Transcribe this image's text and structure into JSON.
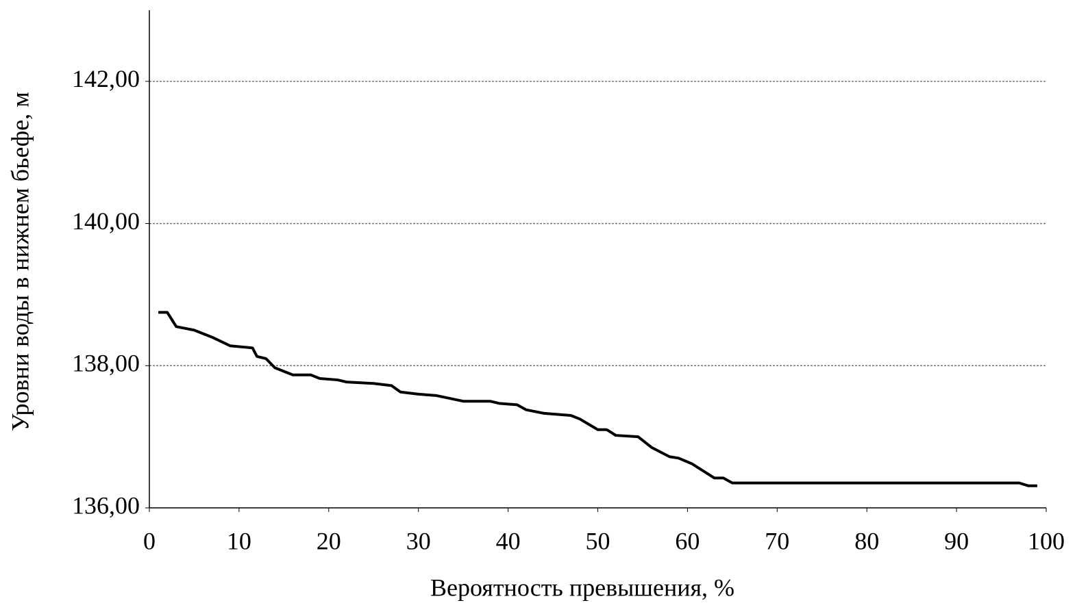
{
  "chart_data": {
    "type": "line",
    "x_label": "Вероятность превышения, %",
    "y_label": "Уровни воды в нижнем бьефе, м",
    "x": [
      1,
      2,
      3,
      5,
      7,
      9,
      11.5,
      12,
      13,
      14,
      16,
      18,
      19,
      21,
      22,
      25,
      27,
      28,
      30,
      32,
      35,
      38,
      39,
      41,
      42,
      44,
      47,
      48,
      50,
      51,
      52,
      54.5,
      56,
      58,
      59,
      60.5,
      62,
      63,
      64,
      65,
      97,
      98,
      99
    ],
    "values": [
      138.75,
      138.75,
      138.55,
      138.5,
      138.4,
      138.28,
      138.25,
      138.13,
      138.1,
      137.97,
      137.87,
      137.87,
      137.82,
      137.8,
      137.77,
      137.75,
      137.72,
      137.63,
      137.6,
      137.58,
      137.5,
      137.5,
      137.47,
      137.45,
      137.38,
      137.33,
      137.3,
      137.25,
      137.1,
      137.1,
      137.02,
      137.0,
      136.85,
      136.72,
      136.7,
      136.62,
      136.5,
      136.42,
      136.42,
      136.35,
      136.35,
      136.31,
      136.31
    ],
    "color": "#000000",
    "xlim": [
      0,
      100
    ],
    "xticks": [
      0,
      10,
      20,
      30,
      40,
      50,
      60,
      70,
      80,
      90,
      100
    ],
    "ylim": [
      136,
      143
    ],
    "yticks": [
      {
        "value": 136,
        "label": "136,00"
      },
      {
        "value": 138,
        "label": "138,00"
      },
      {
        "value": 140,
        "label": "140,00"
      },
      {
        "value": 142,
        "label": "142,00"
      }
    ],
    "grid": true
  }
}
